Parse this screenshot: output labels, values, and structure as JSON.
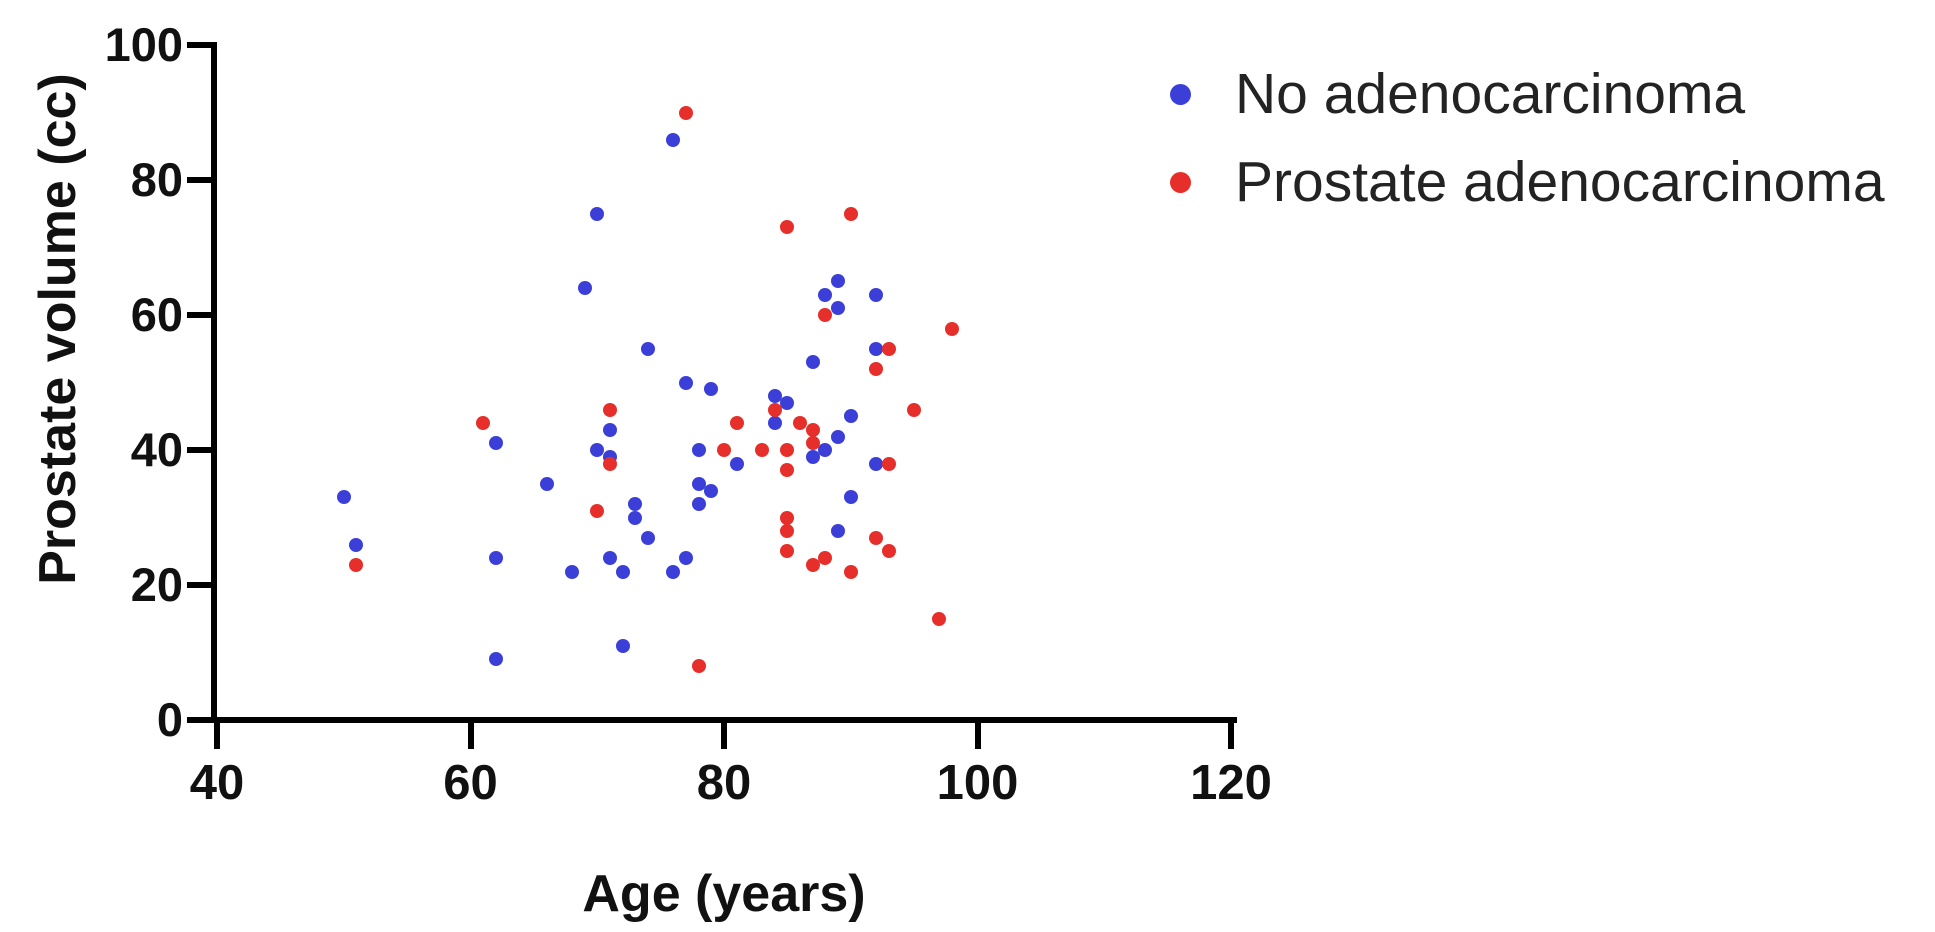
{
  "figure": {
    "background": "#ffffff",
    "axis_color": "#000000",
    "text_color": "#111111"
  },
  "chart_data": {
    "type": "scatter",
    "title": "",
    "xlabel": "Age (years)",
    "ylabel": "Prostate volume (cc)",
    "xlim": [
      40,
      120
    ],
    "ylim": [
      0,
      100
    ],
    "x_ticks": [
      40,
      60,
      80,
      100,
      120
    ],
    "y_ticks": [
      0,
      20,
      40,
      60,
      80,
      100
    ],
    "grid": false,
    "legend_position": "top-right",
    "series": [
      {
        "name": "No adenocarcinoma",
        "color": "#3b3fd8",
        "marker": "circle",
        "points": [
          [
            50,
            33
          ],
          [
            51,
            26
          ],
          [
            62,
            41
          ],
          [
            62,
            24
          ],
          [
            62,
            9
          ],
          [
            66,
            35
          ],
          [
            68,
            22
          ],
          [
            69,
            64
          ],
          [
            70,
            75
          ],
          [
            70,
            40
          ],
          [
            71,
            43
          ],
          [
            71,
            39
          ],
          [
            71,
            24
          ],
          [
            72,
            22
          ],
          [
            72,
            11
          ],
          [
            73,
            32
          ],
          [
            73,
            30
          ],
          [
            74,
            55
          ],
          [
            74,
            27
          ],
          [
            76,
            86
          ],
          [
            76,
            22
          ],
          [
            77,
            50
          ],
          [
            77,
            24
          ],
          [
            78,
            40
          ],
          [
            78,
            35
          ],
          [
            78,
            32
          ],
          [
            79,
            49
          ],
          [
            79,
            34
          ],
          [
            81,
            38
          ],
          [
            84,
            48
          ],
          [
            84,
            44
          ],
          [
            85,
            47
          ],
          [
            87,
            53
          ],
          [
            87,
            39
          ],
          [
            88,
            63
          ],
          [
            88,
            40
          ],
          [
            89,
            65
          ],
          [
            89,
            61
          ],
          [
            89,
            42
          ],
          [
            89,
            28
          ],
          [
            90,
            45
          ],
          [
            90,
            33
          ],
          [
            92,
            63
          ],
          [
            92,
            55
          ],
          [
            92,
            38
          ]
        ]
      },
      {
        "name": "Prostate adenocarcinoma",
        "color": "#e62f2b",
        "marker": "circle",
        "points": [
          [
            51,
            23
          ],
          [
            61,
            44
          ],
          [
            70,
            31
          ],
          [
            71,
            46
          ],
          [
            71,
            38
          ],
          [
            77,
            90
          ],
          [
            78,
            8
          ],
          [
            80,
            40
          ],
          [
            81,
            44
          ],
          [
            83,
            40
          ],
          [
            84,
            46
          ],
          [
            85,
            73
          ],
          [
            85,
            40
          ],
          [
            85,
            37
          ],
          [
            85,
            30
          ],
          [
            85,
            28
          ],
          [
            85,
            25
          ],
          [
            86,
            44
          ],
          [
            87,
            43
          ],
          [
            87,
            41
          ],
          [
            87,
            23
          ],
          [
            88,
            60
          ],
          [
            88,
            24
          ],
          [
            90,
            75
          ],
          [
            90,
            22
          ],
          [
            92,
            52
          ],
          [
            92,
            27
          ],
          [
            93,
            55
          ],
          [
            93,
            38
          ],
          [
            93,
            25
          ],
          [
            95,
            46
          ],
          [
            97,
            15
          ],
          [
            98,
            58
          ]
        ]
      }
    ]
  },
  "legend": {
    "items": [
      {
        "label": "No adenocarcinoma",
        "color": "#3b3fd8"
      },
      {
        "label": "Prostate adenocarcinoma",
        "color": "#e62f2b"
      }
    ]
  }
}
